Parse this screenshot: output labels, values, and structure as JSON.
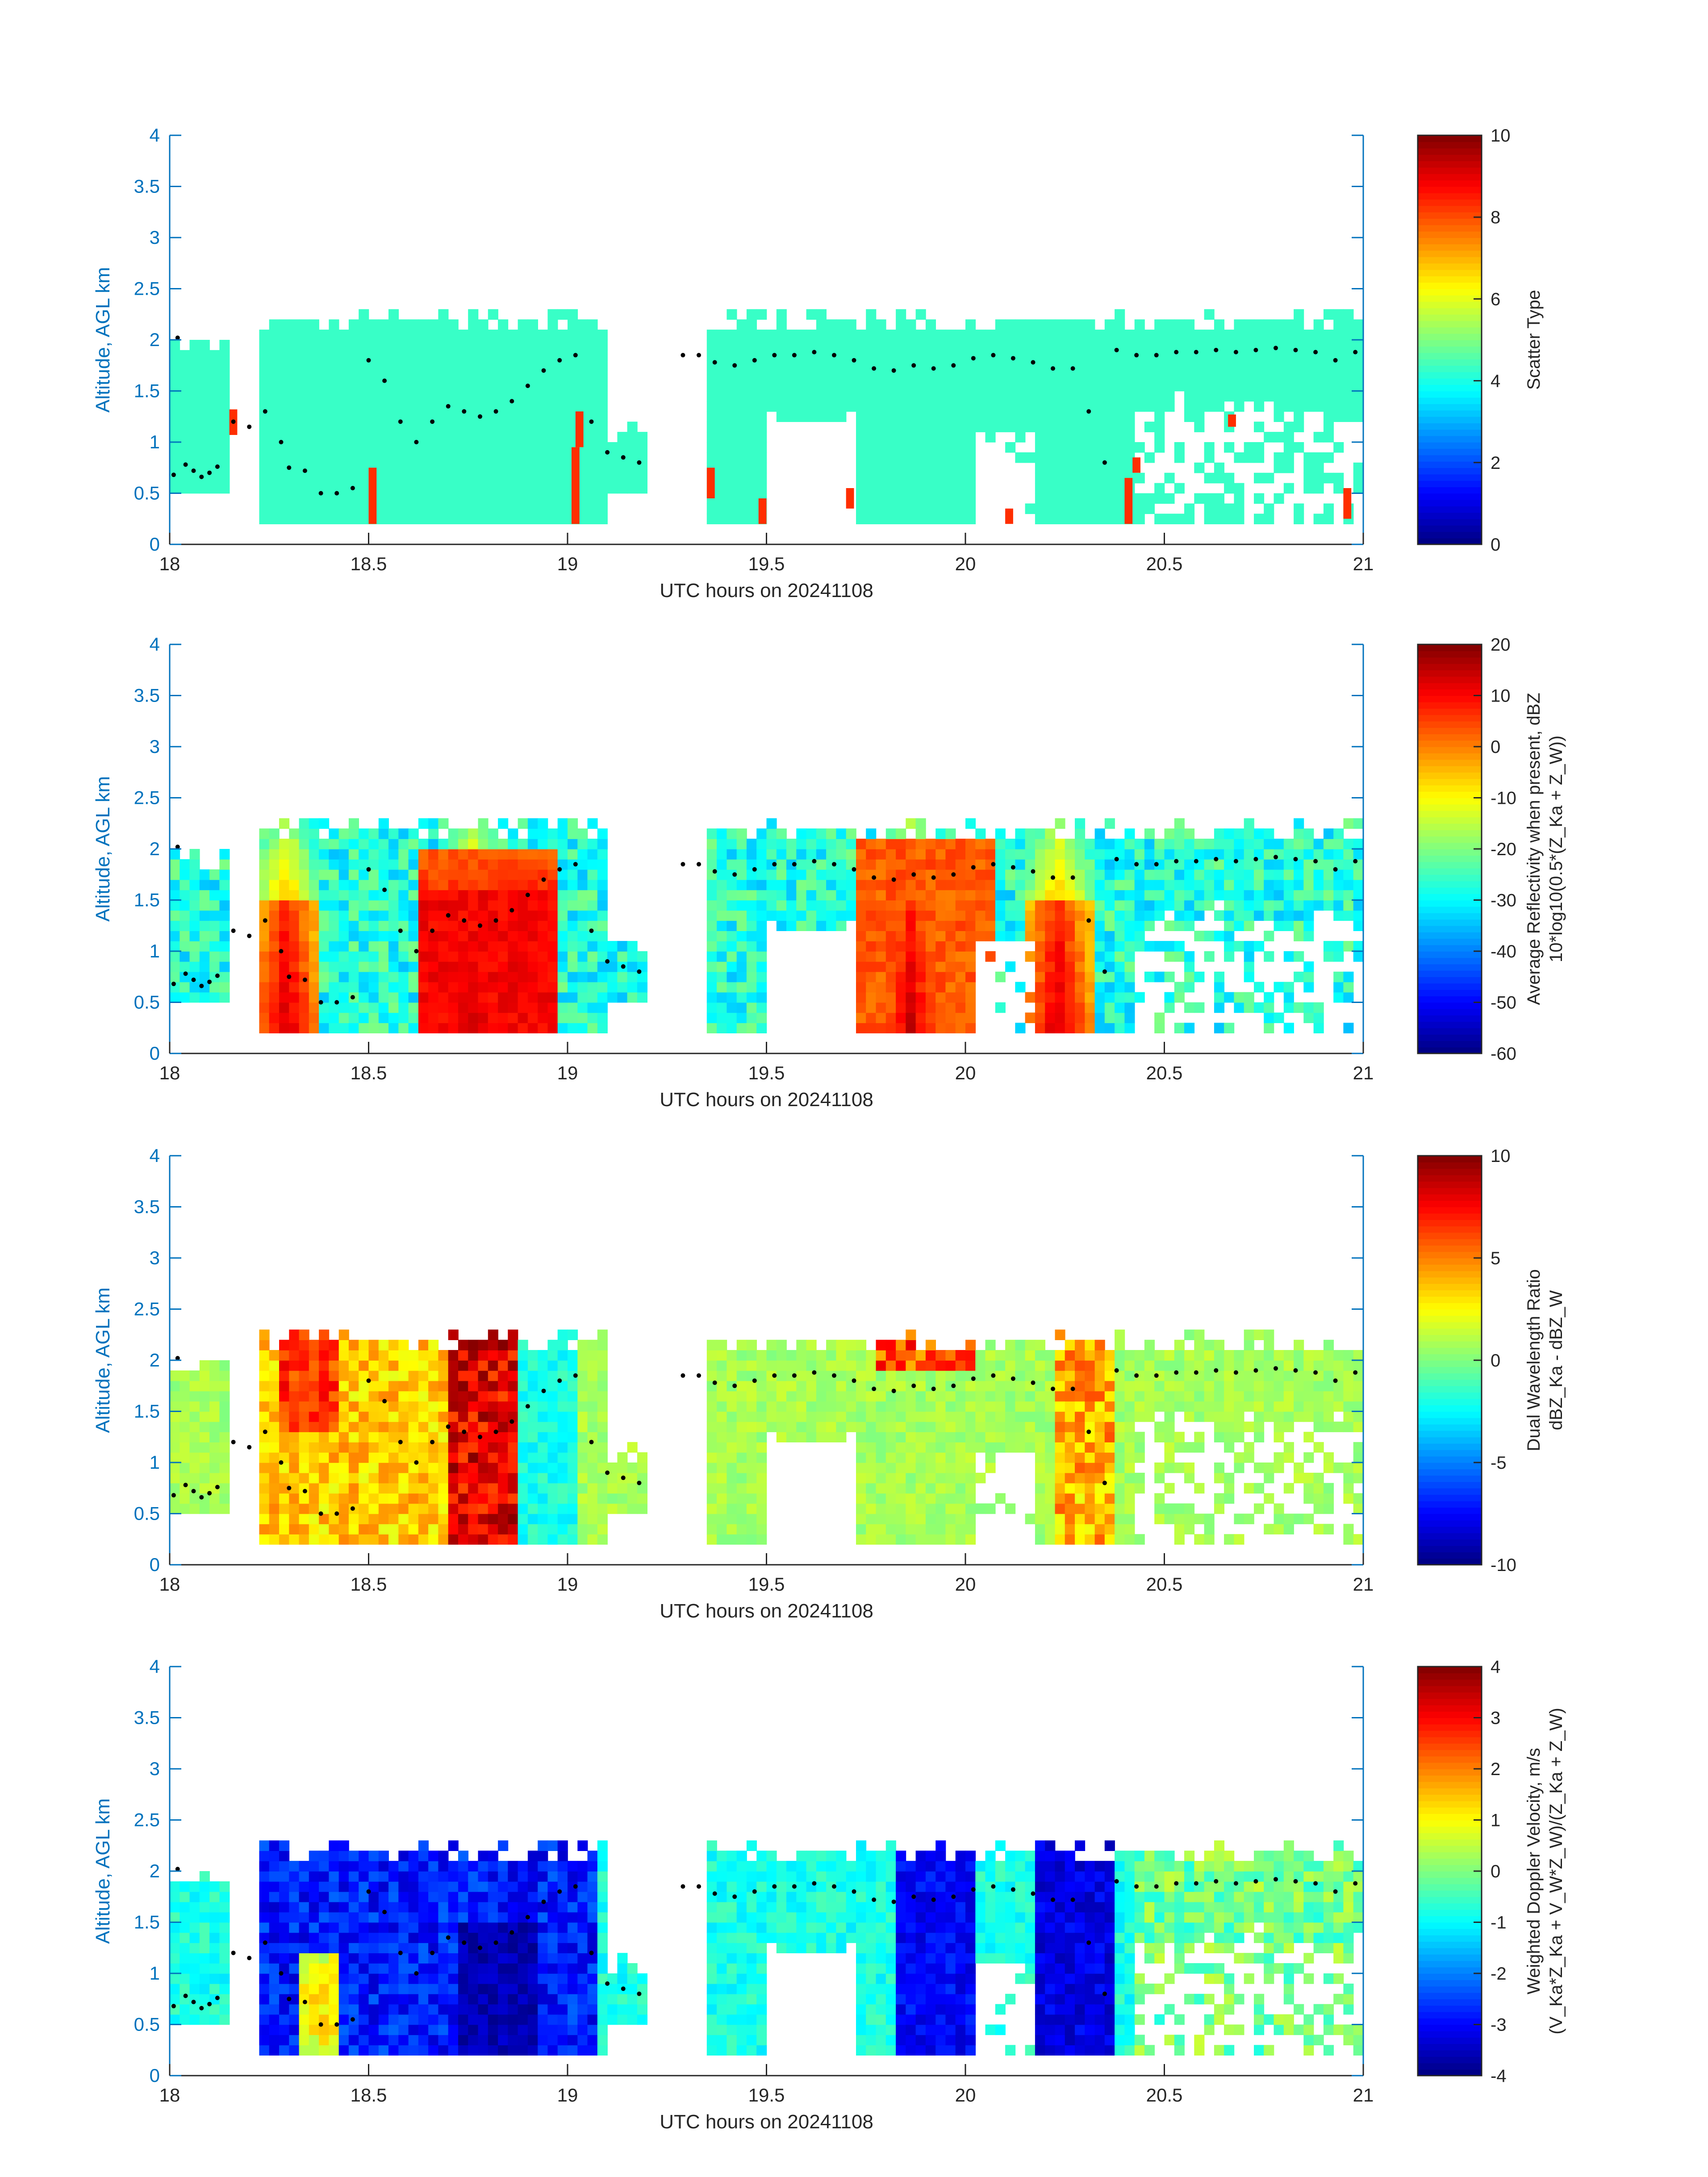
{
  "figure": {
    "xlabel": "UTC hours on 20241108",
    "ylabel": "Altitude, AGL km",
    "axis_color": "#0072bd",
    "colormap": "jet"
  },
  "chart_data": [
    {
      "type": "heatmap",
      "id": "scatter_type",
      "xlim": [
        18,
        21
      ],
      "ylim": [
        0,
        4
      ],
      "xticks": [
        "18",
        "18.5",
        "19",
        "19.5",
        "20",
        "20.5",
        "21"
      ],
      "yticks": [
        "0",
        "0.5",
        "1",
        "1.5",
        "2",
        "2.5",
        "3",
        "3.5",
        "4"
      ],
      "xlabel": "UTC hours on 20241108",
      "ylabel": "Altitude, AGL km",
      "colorbar": {
        "clim": [
          0,
          10
        ],
        "ticks": [
          "0",
          "2",
          "4",
          "6",
          "8",
          "10"
        ],
        "label_lines": [
          "Scatter Type"
        ]
      },
      "dominant_value": 4.3,
      "secondary_value": 8.3
    },
    {
      "type": "heatmap",
      "id": "avg_reflectivity",
      "xlim": [
        18,
        21
      ],
      "ylim": [
        0,
        4
      ],
      "xticks": [
        "18",
        "18.5",
        "19",
        "19.5",
        "20",
        "20.5",
        "21"
      ],
      "yticks": [
        "0",
        "0.5",
        "1",
        "1.5",
        "2",
        "2.5",
        "3",
        "3.5",
        "4"
      ],
      "xlabel": "UTC hours on 20241108",
      "ylabel": "Altitude, AGL km",
      "colorbar": {
        "clim": [
          -60,
          20
        ],
        "ticks": [
          "-60",
          "-50",
          "-40",
          "-30",
          "-20",
          "-10",
          "0",
          "10",
          "20"
        ],
        "label_lines": [
          "Average Reflectivity when present, dBZ",
          "10*log10(0.5*(Z_Ka + Z_W))"
        ]
      },
      "strong_cores_hours": [
        18.28,
        18.75,
        19.85,
        20.22
      ]
    },
    {
      "type": "heatmap",
      "id": "dual_wavelength_ratio",
      "xlim": [
        18,
        21
      ],
      "ylim": [
        0,
        4
      ],
      "xticks": [
        "18",
        "18.5",
        "19",
        "19.5",
        "20",
        "20.5",
        "21"
      ],
      "yticks": [
        "0",
        "0.5",
        "1",
        "1.5",
        "2",
        "2.5",
        "3",
        "3.5",
        "4"
      ],
      "xlabel": "UTC hours on 20241108",
      "ylabel": "Altitude, AGL km",
      "colorbar": {
        "clim": [
          -10,
          10
        ],
        "ticks": [
          "-10",
          "-5",
          "0",
          "5",
          "10"
        ],
        "label_lines": [
          "Dual Wavelength Ratio",
          "dBZ_Ka - dBZ_W"
        ]
      }
    },
    {
      "type": "heatmap",
      "id": "weighted_doppler_velocity",
      "xlim": [
        18,
        21
      ],
      "ylim": [
        0,
        4
      ],
      "xticks": [
        "18",
        "18.5",
        "19",
        "19.5",
        "20",
        "20.5",
        "21"
      ],
      "yticks": [
        "0",
        "0.5",
        "1",
        "1.5",
        "2",
        "2.5",
        "3",
        "3.5",
        "4"
      ],
      "xlabel": "UTC hours on 20241108",
      "ylabel": "Altitude, AGL km",
      "colorbar": {
        "clim": [
          -4,
          4
        ],
        "ticks": [
          "-4",
          "-3",
          "-2",
          "-1",
          "0",
          "1",
          "2",
          "3",
          "4"
        ],
        "label_lines": [
          "Weighted Doppler Velocity, m/s",
          "(V_Ka*Z_Ka + V_W*Z_W)/(Z_Ka + Z_W)"
        ]
      }
    }
  ],
  "cloud_echo": {
    "data_gap_hours": [
      19.27,
      19.33
    ],
    "echo_segments": [
      {
        "start": 18.0,
        "end": 18.15,
        "top_km": 2.05,
        "bottom_km": 0.5
      },
      {
        "start": 18.22,
        "end": 19.1,
        "top_km": 2.35,
        "bottom_km": 0.2
      },
      {
        "start": 19.1,
        "end": 19.2,
        "top_km": 1.2,
        "bottom_km": 0.55
      },
      {
        "start": 19.35,
        "end": 21.0,
        "top_km": 2.3,
        "bottom_km": 0.2
      }
    ]
  },
  "cloud_top_dots": {
    "color": "#000000",
    "points": [
      [
        18.01,
        0.68
      ],
      [
        18.02,
        2.02
      ],
      [
        18.04,
        0.78
      ],
      [
        18.06,
        0.72
      ],
      [
        18.08,
        0.66
      ],
      [
        18.1,
        0.7
      ],
      [
        18.12,
        0.76
      ],
      [
        18.16,
        1.2
      ],
      [
        18.2,
        1.15
      ],
      [
        18.24,
        1.3
      ],
      [
        18.28,
        1.0
      ],
      [
        18.3,
        0.75
      ],
      [
        18.34,
        0.72
      ],
      [
        18.38,
        0.5
      ],
      [
        18.42,
        0.5
      ],
      [
        18.46,
        0.55
      ],
      [
        18.5,
        1.8
      ],
      [
        18.54,
        1.6
      ],
      [
        18.58,
        1.2
      ],
      [
        18.62,
        1.0
      ],
      [
        18.66,
        1.2
      ],
      [
        18.7,
        1.35
      ],
      [
        18.74,
        1.3
      ],
      [
        18.78,
        1.25
      ],
      [
        18.82,
        1.3
      ],
      [
        18.86,
        1.4
      ],
      [
        18.9,
        1.55
      ],
      [
        18.94,
        1.7
      ],
      [
        18.98,
        1.8
      ],
      [
        19.02,
        1.85
      ],
      [
        19.06,
        1.2
      ],
      [
        19.1,
        0.9
      ],
      [
        19.14,
        0.85
      ],
      [
        19.18,
        0.8
      ],
      [
        19.29,
        1.85
      ],
      [
        19.33,
        1.85
      ],
      [
        19.37,
        1.78
      ],
      [
        19.42,
        1.75
      ],
      [
        19.47,
        1.8
      ],
      [
        19.52,
        1.85
      ],
      [
        19.57,
        1.85
      ],
      [
        19.62,
        1.88
      ],
      [
        19.67,
        1.85
      ],
      [
        19.72,
        1.8
      ],
      [
        19.77,
        1.72
      ],
      [
        19.82,
        1.7
      ],
      [
        19.87,
        1.75
      ],
      [
        19.92,
        1.72
      ],
      [
        19.97,
        1.75
      ],
      [
        20.02,
        1.82
      ],
      [
        20.07,
        1.85
      ],
      [
        20.12,
        1.82
      ],
      [
        20.17,
        1.78
      ],
      [
        20.22,
        1.72
      ],
      [
        20.27,
        1.72
      ],
      [
        20.31,
        1.3
      ],
      [
        20.35,
        0.8
      ],
      [
        20.38,
        1.9
      ],
      [
        20.43,
        1.85
      ],
      [
        20.48,
        1.85
      ],
      [
        20.53,
        1.88
      ],
      [
        20.58,
        1.88
      ],
      [
        20.63,
        1.9
      ],
      [
        20.68,
        1.88
      ],
      [
        20.73,
        1.9
      ],
      [
        20.78,
        1.92
      ],
      [
        20.83,
        1.9
      ],
      [
        20.88,
        1.88
      ],
      [
        20.93,
        1.8
      ],
      [
        20.98,
        1.88
      ]
    ]
  },
  "scatter_type_patches": [
    [
      18.15,
      1.07,
      0.25
    ],
    [
      18.5,
      0.2,
      0.55
    ],
    [
      19.01,
      0.2,
      0.75
    ],
    [
      19.02,
      0.95,
      0.35
    ],
    [
      19.35,
      0.45,
      0.3
    ],
    [
      19.48,
      0.2,
      0.25
    ],
    [
      19.7,
      0.35,
      0.2
    ],
    [
      20.1,
      0.2,
      0.15
    ],
    [
      20.4,
      0.2,
      0.45
    ],
    [
      20.42,
      0.7,
      0.15
    ],
    [
      20.66,
      1.15,
      0.12
    ],
    [
      20.95,
      0.25,
      0.3
    ]
  ]
}
